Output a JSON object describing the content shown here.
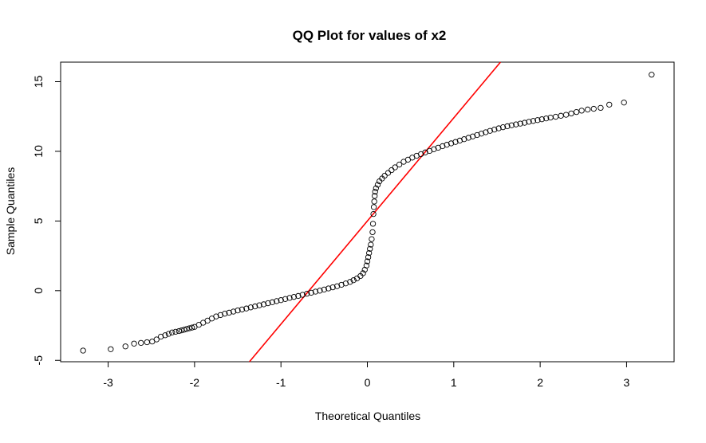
{
  "chart_data": {
    "type": "scatter",
    "title": "QQ Plot for values of x2",
    "xlabel": "Theoretical Quantiles",
    "ylabel": "Sample Quantiles",
    "xlim": [
      -3.55,
      3.55
    ],
    "ylim": [
      -5.1,
      16.4
    ],
    "x_ticks": [
      -3,
      -2,
      -1,
      0,
      1,
      2,
      3
    ],
    "x_tick_labels": [
      "-3",
      "-2",
      "-1",
      "0",
      "1",
      "2",
      "3"
    ],
    "y_ticks": [
      -5,
      0,
      5,
      10,
      15
    ],
    "y_tick_labels": [
      "-5",
      "0",
      "5",
      "10",
      "15"
    ],
    "grid": false,
    "legend": "none",
    "series": [
      {
        "marker": "open-circle",
        "color": "#000000",
        "points": [
          [
            -3.29,
            -4.3
          ],
          [
            -2.97,
            -4.2
          ],
          [
            -2.8,
            -4.0
          ],
          [
            -2.7,
            -3.8
          ],
          [
            -2.62,
            -3.75
          ],
          [
            -2.55,
            -3.7
          ],
          [
            -2.49,
            -3.65
          ],
          [
            -2.44,
            -3.5
          ],
          [
            -2.39,
            -3.3
          ],
          [
            -2.34,
            -3.2
          ],
          [
            -2.3,
            -3.1
          ],
          [
            -2.26,
            -3.0
          ],
          [
            -2.22,
            -2.95
          ],
          [
            -2.18,
            -2.9
          ],
          [
            -2.15,
            -2.85
          ],
          [
            -2.12,
            -2.8
          ],
          [
            -2.09,
            -2.75
          ],
          [
            -2.06,
            -2.7
          ],
          [
            -2.03,
            -2.65
          ],
          [
            -2.0,
            -2.6
          ],
          [
            -1.95,
            -2.45
          ],
          [
            -1.9,
            -2.3
          ],
          [
            -1.85,
            -2.15
          ],
          [
            -1.8,
            -2.0
          ],
          [
            -1.75,
            -1.85
          ],
          [
            -1.7,
            -1.75
          ],
          [
            -1.65,
            -1.65
          ],
          [
            -1.6,
            -1.58
          ],
          [
            -1.55,
            -1.5
          ],
          [
            -1.5,
            -1.42
          ],
          [
            -1.45,
            -1.35
          ],
          [
            -1.4,
            -1.28
          ],
          [
            -1.35,
            -1.2
          ],
          [
            -1.3,
            -1.13
          ],
          [
            -1.25,
            -1.05
          ],
          [
            -1.2,
            -0.98
          ],
          [
            -1.15,
            -0.9
          ],
          [
            -1.1,
            -0.83
          ],
          [
            -1.05,
            -0.75
          ],
          [
            -1.0,
            -0.68
          ],
          [
            -0.95,
            -0.6
          ],
          [
            -0.9,
            -0.52
          ],
          [
            -0.85,
            -0.45
          ],
          [
            -0.8,
            -0.38
          ],
          [
            -0.75,
            -0.3
          ],
          [
            -0.7,
            -0.22
          ],
          [
            -0.65,
            -0.15
          ],
          [
            -0.6,
            -0.07
          ],
          [
            -0.55,
            0.0
          ],
          [
            -0.5,
            0.08
          ],
          [
            -0.45,
            0.16
          ],
          [
            -0.4,
            0.24
          ],
          [
            -0.35,
            0.32
          ],
          [
            -0.3,
            0.42
          ],
          [
            -0.25,
            0.52
          ],
          [
            -0.2,
            0.63
          ],
          [
            -0.16,
            0.75
          ],
          [
            -0.12,
            0.88
          ],
          [
            -0.08,
            1.05
          ],
          [
            -0.05,
            1.25
          ],
          [
            -0.03,
            1.5
          ],
          [
            -0.01,
            1.8
          ],
          [
            0.0,
            2.1
          ],
          [
            0.01,
            2.4
          ],
          [
            0.02,
            2.7
          ],
          [
            0.03,
            3.0
          ],
          [
            0.04,
            3.3
          ],
          [
            0.05,
            3.7
          ],
          [
            0.06,
            4.2
          ],
          [
            0.065,
            4.8
          ],
          [
            0.07,
            5.5
          ],
          [
            0.075,
            6.0
          ],
          [
            0.08,
            6.4
          ],
          [
            0.085,
            6.8
          ],
          [
            0.09,
            7.1
          ],
          [
            0.1,
            7.35
          ],
          [
            0.12,
            7.6
          ],
          [
            0.14,
            7.85
          ],
          [
            0.17,
            8.05
          ],
          [
            0.2,
            8.25
          ],
          [
            0.24,
            8.45
          ],
          [
            0.28,
            8.65
          ],
          [
            0.32,
            8.85
          ],
          [
            0.37,
            9.05
          ],
          [
            0.42,
            9.25
          ],
          [
            0.47,
            9.4
          ],
          [
            0.52,
            9.55
          ],
          [
            0.57,
            9.68
          ],
          [
            0.62,
            9.8
          ],
          [
            0.67,
            9.92
          ],
          [
            0.72,
            10.03
          ],
          [
            0.77,
            10.15
          ],
          [
            0.82,
            10.26
          ],
          [
            0.87,
            10.37
          ],
          [
            0.92,
            10.47
          ],
          [
            0.97,
            10.57
          ],
          [
            1.02,
            10.67
          ],
          [
            1.07,
            10.77
          ],
          [
            1.12,
            10.87
          ],
          [
            1.17,
            10.97
          ],
          [
            1.22,
            11.07
          ],
          [
            1.27,
            11.17
          ],
          [
            1.32,
            11.27
          ],
          [
            1.37,
            11.37
          ],
          [
            1.42,
            11.47
          ],
          [
            1.47,
            11.56
          ],
          [
            1.52,
            11.65
          ],
          [
            1.57,
            11.73
          ],
          [
            1.62,
            11.8
          ],
          [
            1.67,
            11.87
          ],
          [
            1.72,
            11.93
          ],
          [
            1.77,
            11.99
          ],
          [
            1.82,
            12.05
          ],
          [
            1.87,
            12.12
          ],
          [
            1.92,
            12.18
          ],
          [
            1.97,
            12.24
          ],
          [
            2.02,
            12.3
          ],
          [
            2.07,
            12.36
          ],
          [
            2.12,
            12.42
          ],
          [
            2.18,
            12.48
          ],
          [
            2.24,
            12.55
          ],
          [
            2.3,
            12.62
          ],
          [
            2.36,
            12.72
          ],
          [
            2.42,
            12.82
          ],
          [
            2.48,
            12.92
          ],
          [
            2.55,
            13.0
          ],
          [
            2.62,
            13.05
          ],
          [
            2.7,
            13.12
          ],
          [
            2.8,
            13.35
          ],
          [
            2.97,
            13.5
          ],
          [
            3.29,
            15.5
          ]
        ]
      }
    ],
    "reference_line": {
      "color": "#ff0000",
      "intercept": 5.0,
      "slope": 7.4
    }
  }
}
